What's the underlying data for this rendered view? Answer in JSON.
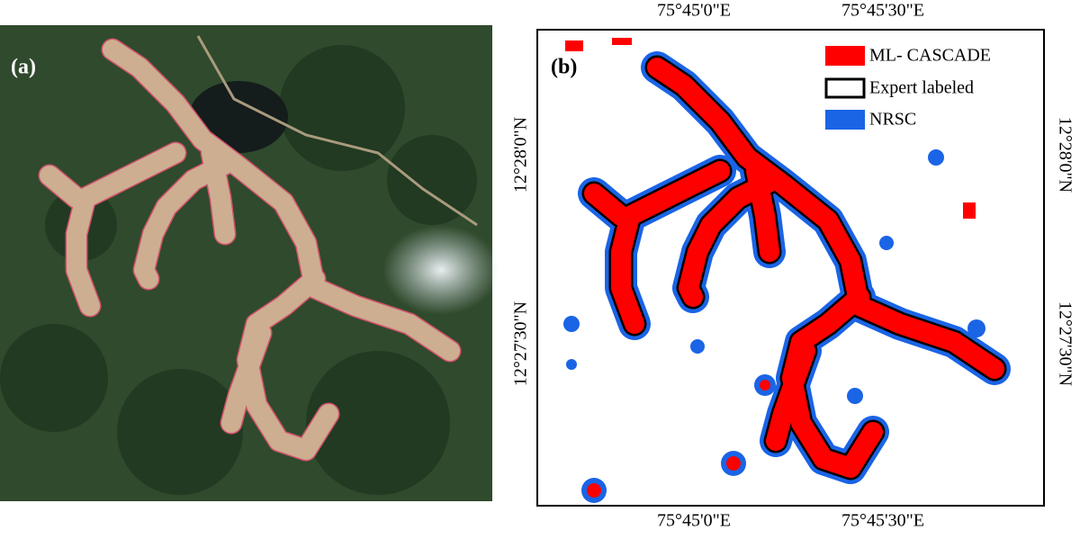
{
  "panels": {
    "a": {
      "label": "(a)"
    },
    "b": {
      "label": "(b)",
      "legend": [
        "ML- CASCADE",
        "Expert labeled",
        "NRSC"
      ],
      "x_ticks": [
        "75°45'0\"E",
        "75°45'30\"E"
      ],
      "y_ticks": [
        "12°28'0\"N",
        "12°27'30\"N"
      ]
    }
  }
}
